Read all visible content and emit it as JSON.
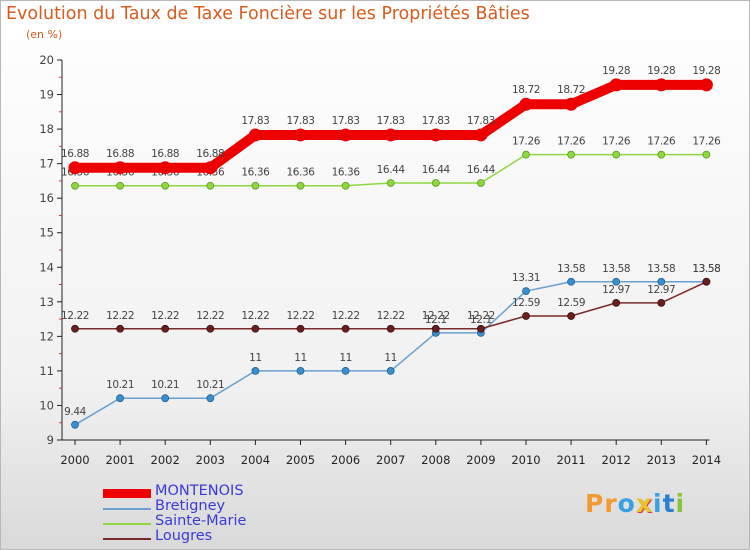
{
  "chart_data": {
    "type": "line",
    "title": "Evolution du Taux de Taxe Foncière sur les Propriétés Bâties",
    "ylabel": "(en %)",
    "xlabel": "",
    "ylim": [
      9,
      20
    ],
    "yticks": [
      "9",
      "10",
      "11",
      "12",
      "13",
      "14",
      "15",
      "16",
      "17",
      "18",
      "19",
      "20"
    ],
    "categories": [
      "2000",
      "2001",
      "2002",
      "2003",
      "2004",
      "2005",
      "2006",
      "2007",
      "2008",
      "2009",
      "2010",
      "2011",
      "2012",
      "2013",
      "2014"
    ],
    "series": [
      {
        "name": "MONTENOIS",
        "color": "#ee0000",
        "values": [
          16.88,
          16.88,
          16.88,
          16.88,
          17.83,
          17.83,
          17.83,
          17.83,
          17.83,
          17.83,
          18.72,
          18.72,
          19.28,
          19.28,
          19.28
        ],
        "labels": [
          "16.88",
          "16.88",
          "16.88",
          "16.88",
          "17.83",
          "17.83",
          "17.83",
          "17.83",
          "17.83",
          "17.83",
          "18.72",
          "18.72",
          "19.28",
          "19.28",
          "19.28"
        ]
      },
      {
        "name": "Bretigney",
        "color": "#6aa0d0",
        "values": [
          9.44,
          10.21,
          10.21,
          10.21,
          11,
          11,
          11,
          11,
          12.1,
          12.1,
          13.31,
          13.58,
          13.58,
          13.58,
          13.58
        ],
        "labels": [
          "9.44",
          "10.21",
          "10.21",
          "10.21",
          "11",
          "11",
          "11",
          "11",
          "12.1",
          "12.1",
          "13.31",
          "13.58",
          "13.58",
          "13.58",
          "13.58"
        ]
      },
      {
        "name": "Sainte-Marie",
        "color": "#8fd640",
        "values": [
          16.36,
          16.36,
          16.36,
          16.36,
          16.36,
          16.36,
          16.36,
          16.44,
          16.44,
          16.44,
          17.26,
          17.26,
          17.26,
          17.26,
          17.26
        ],
        "labels": [
          "16.36",
          "16.36",
          "16.36",
          "16.36",
          "16.36",
          "16.36",
          "16.36",
          "16.44",
          "16.44",
          "16.44",
          "17.26",
          "17.26",
          "17.26",
          "17.26",
          "17.26"
        ]
      },
      {
        "name": "Lougres",
        "color": "#7a2a2a",
        "values": [
          12.22,
          12.22,
          12.22,
          12.22,
          12.22,
          12.22,
          12.22,
          12.22,
          12.22,
          12.22,
          12.59,
          12.59,
          12.97,
          12.97,
          13.58
        ],
        "labels": [
          "12.22",
          "12.22",
          "12.22",
          "12.22",
          "12.22",
          "12.22",
          "12.22",
          "12.22",
          "12.22",
          "12.22",
          "12.59",
          "12.59",
          "12.97",
          "12.97",
          "13.58"
        ]
      }
    ]
  },
  "brand": {
    "name": "Proxiti",
    "letters": [
      "P",
      "r",
      "o",
      "x",
      "i",
      "t",
      "i"
    ],
    "colors": [
      "#f29a2e",
      "#f29a2e",
      "#3aa0e0",
      "#e8c42a",
      "#3aa0e0",
      "#2a7fd0",
      "#8ac43a"
    ]
  }
}
